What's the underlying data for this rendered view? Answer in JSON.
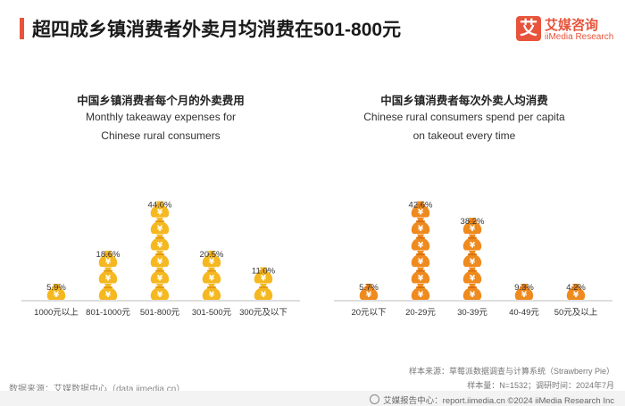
{
  "header": {
    "title": "超四成乡镇消费者外卖月均消费在501-800元",
    "logo_mark": "艾",
    "logo_name": "艾媒咨询",
    "logo_en": "iiMedia Research"
  },
  "colors": {
    "accent": "#e8533b",
    "bag_yellow": "#f5b820",
    "bag_yellow_dark": "#e39a10",
    "bag_orange": "#ef8a1e",
    "bag_orange_dark": "#d9700f"
  },
  "chart_data": [
    {
      "type": "bar",
      "style": "pictograph money bags",
      "title": "中国乡镇消费者每个月的外卖费用",
      "subtitle": "Monthly takeaway expenses for Chinese rural consumers",
      "categories": [
        "1000元以上",
        "801-1000元",
        "501-800元",
        "301-500元",
        "300元及以下"
      ],
      "values": [
        5.9,
        18.6,
        44.0,
        20.5,
        11.0
      ],
      "labels": [
        "5.9%",
        "18.6%",
        "44.0%",
        "20.5%",
        "11.0%"
      ],
      "unit": "%",
      "color": "yellow"
    },
    {
      "type": "bar",
      "style": "pictograph money bags",
      "title": "中国乡镇消费者每次外卖人均消费",
      "subtitle": "Chinese rural consumers spend per capita on takeout every time",
      "categories": [
        "20元以下",
        "20-29元",
        "30-39元",
        "40-49元",
        "50元及以上"
      ],
      "values": [
        5.7,
        42.6,
        38.2,
        9.3,
        4.2
      ],
      "labels": [
        "5.7%",
        "42.6%",
        "38.2%",
        "9.3%",
        "4.2%"
      ],
      "unit": "%",
      "color": "orange"
    }
  ],
  "charts_text": {
    "left_title_cn": "中国乡镇消费者每个月的外卖费用",
    "left_title_en_1": "Monthly takeaway expenses for",
    "left_title_en_2": "Chinese rural consumers",
    "right_title_cn": "中国乡镇消费者每次外卖人均消费",
    "right_title_en_1": "Chinese rural consumers spend per capita",
    "right_title_en_2": "on takeout every time"
  },
  "footer": {
    "data_source": "数据来源：艾媒数据中心（data.iimedia.cn）",
    "sample_source": "样本来源：草莓派数据调查与计算系统（Strawberry Pie）",
    "sample_size": "样本量：N=1532；调研时间：2024年7月",
    "report_center": "艾媒报告中心：report.iimedia.cn   ©2024  iiMedia Research  Inc"
  }
}
